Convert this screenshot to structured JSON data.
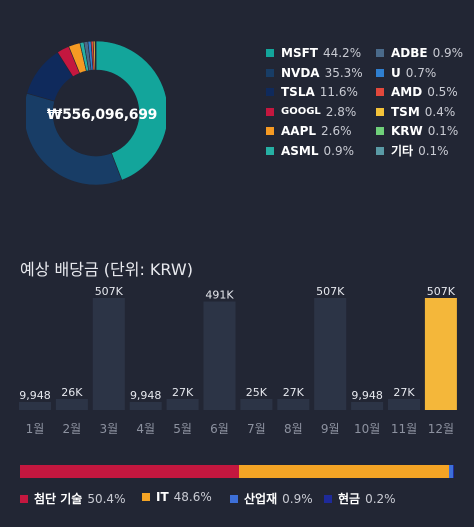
{
  "portfolio": {
    "total_amount": "₩556,096,699",
    "holdings": [
      {
        "name": "MSFT",
        "percent": "44.2%",
        "share": 44.2,
        "color": "#13a59b"
      },
      {
        "name": "NVDA",
        "percent": "35.3%",
        "share": 35.3,
        "color": "#183d66"
      },
      {
        "name": "TSLA",
        "percent": "11.6%",
        "share": 11.6,
        "color": "#0f2a5c"
      },
      {
        "name": "GOOGL",
        "percent": "2.8%",
        "share": 2.8,
        "color": "#c4173f"
      },
      {
        "name": "AAPL",
        "percent": "2.6%",
        "share": 2.6,
        "color": "#f59a23"
      },
      {
        "name": "ASML",
        "percent": "0.9%",
        "share": 0.9,
        "color": "#26b0a4"
      },
      {
        "name": "ADBE",
        "percent": "0.9%",
        "share": 0.9,
        "color": "#4a6a8a"
      },
      {
        "name": "U",
        "percent": "0.7%",
        "share": 0.7,
        "color": "#2f7fd0"
      },
      {
        "name": "AMD",
        "percent": "0.5%",
        "share": 0.5,
        "color": "#e2483c"
      },
      {
        "name": "TSM",
        "percent": "0.4%",
        "share": 0.4,
        "color": "#f4c33a"
      },
      {
        "name": "KRW",
        "percent": "0.1%",
        "share": 0.1,
        "color": "#6fd07a"
      },
      {
        "name": "기타",
        "percent": "0.1%",
        "share": 0.1,
        "color": "#5a9aa5"
      }
    ]
  },
  "dividends": {
    "title": "예상 배당금 (단위: KRW)"
  },
  "chart_data": {
    "type": "bar",
    "categories": [
      "1월",
      "2월",
      "3월",
      "4월",
      "5월",
      "6월",
      "7월",
      "8월",
      "9월",
      "10월",
      "11월",
      "12월"
    ],
    "values": [
      9948,
      26000,
      507000,
      9948,
      27000,
      491000,
      25000,
      27000,
      507000,
      9948,
      27000,
      507000
    ],
    "value_labels": [
      "9,948",
      "26K",
      "507K",
      "9,948",
      "27K",
      "491K",
      "25K",
      "27K",
      "507K",
      "9,948",
      "27K",
      "507K"
    ],
    "highlight_index": 11,
    "bar_color": "#2c3446",
    "highlight_color": "#f4b73a",
    "ylim": [
      0,
      507000
    ]
  },
  "allocation": {
    "items": [
      {
        "name": "첨단 기술",
        "percent": "50.4%",
        "share": 50.4,
        "color": "#c4173f"
      },
      {
        "name": "IT",
        "percent": "48.6%",
        "share": 48.6,
        "color": "#f4a425"
      },
      {
        "name": "산업재",
        "percent": "0.9%",
        "share": 0.9,
        "color": "#3d6fd8"
      },
      {
        "name": "현금",
        "percent": "0.2%",
        "share": 0.2,
        "color": "#1e2a9a"
      }
    ]
  }
}
